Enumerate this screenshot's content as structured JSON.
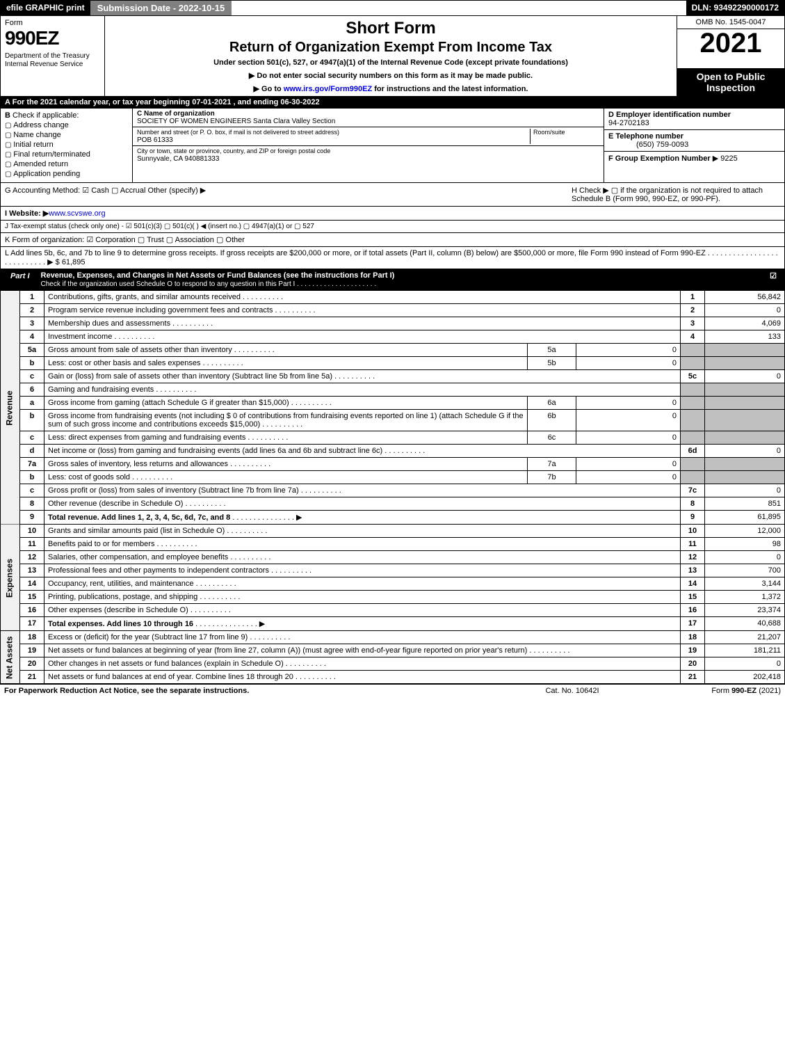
{
  "header": {
    "efile": "efile GRAPHIC print",
    "submission": "Submission Date - 2022-10-15",
    "dln": "DLN: 93492290000172"
  },
  "top": {
    "form_label": "Form",
    "form_number": "990EZ",
    "dept": "Department of the Treasury\nInternal Revenue Service",
    "short_form": "Short Form",
    "return_title": "Return of Organization Exempt From Income Tax",
    "under": "Under section 501(c), 527, or 4947(a)(1) of the Internal Revenue Code (except private foundations)",
    "no_ssn": "▶ Do not enter social security numbers on this form as it may be made public.",
    "goto": "▶ Go to www.irs.gov/Form990EZ for instructions and the latest information.",
    "goto_link": "www.irs.gov/Form990EZ",
    "omb": "OMB No. 1545-0047",
    "year": "2021",
    "open": "Open to Public Inspection"
  },
  "section_a": "For the 2021 calendar year, or tax year beginning 07-01-2021 , and ending 06-30-2022",
  "section_b": {
    "label": "Check if applicable:",
    "items": [
      "Address change",
      "Name change",
      "Initial return",
      "Final return/terminated",
      "Amended return",
      "Application pending"
    ]
  },
  "section_c": {
    "name_lbl": "C Name of organization",
    "name": "SOCIETY OF WOMEN ENGINEERS Santa Clara Valley Section",
    "street_lbl": "Number and street (or P. O. box, if mail is not delivered to street address)",
    "street": "POB 61333",
    "room_lbl": "Room/suite",
    "city_lbl": "City or town, state or province, country, and ZIP or foreign postal code",
    "city": "Sunnyvale, CA  940881333"
  },
  "section_d": {
    "lbl": "D Employer identification number",
    "val": "94-2702183"
  },
  "section_e": {
    "lbl": "E Telephone number",
    "val": "(650) 759-0093"
  },
  "section_f": {
    "lbl": "F Group Exemption Number",
    "val": "▶ 9225"
  },
  "section_g": "G Accounting Method:  ☑ Cash  ▢ Accrual  Other (specify) ▶",
  "section_h": "H  Check ▶  ▢  if the organization is not required to attach Schedule B (Form 990, 990-EZ, or 990-PF).",
  "section_i": {
    "lbl": "I Website: ▶",
    "val": "www.scvswe.org"
  },
  "section_j": "J Tax-exempt status (check only one) - ☑ 501(c)(3) ▢ 501(c)(  ) ◀ (insert no.) ▢ 4947(a)(1) or ▢ 527",
  "section_k": "K Form of organization:  ☑ Corporation  ▢ Trust  ▢ Association  ▢ Other",
  "section_l": "L Add lines 5b, 6c, and 7b to line 9 to determine gross receipts. If gross receipts are $200,000 or more, or if total assets (Part II, column (B) below) are $500,000 or more, file Form 990 instead of Form 990-EZ .  .  .  .  .  .  .  .  .  .  .  .  .  .  .  .  .  .  .  .  .  .  .  .  .  .  .   ▶ $ 61,895",
  "part1": {
    "hdr_lbl": "Part I",
    "hdr_txt": "Revenue, Expenses, and Changes in Net Assets or Fund Balances (see the instructions for Part I)",
    "hdr_sub": "Check if the organization used Schedule O to respond to any question in this Part I .  .  .  .  .  .  .  .  .  .  .  .  .  .  .  .  .  .  .  .  .",
    "side_rev": "Revenue",
    "side_exp": "Expenses",
    "side_net": "Net Assets"
  },
  "lines": [
    {
      "n": "1",
      "t": "Contributions, gifts, grants, and similar amounts received",
      "rn": "1",
      "amt": "56,842"
    },
    {
      "n": "2",
      "t": "Program service revenue including government fees and contracts",
      "rn": "2",
      "amt": "0"
    },
    {
      "n": "3",
      "t": "Membership dues and assessments",
      "rn": "3",
      "amt": "4,069"
    },
    {
      "n": "4",
      "t": "Investment income",
      "rn": "4",
      "amt": "133"
    },
    {
      "n": "5a",
      "t": "Gross amount from sale of assets other than inventory",
      "sub": "5a",
      "sv": "0"
    },
    {
      "n": "b",
      "t": "Less: cost or other basis and sales expenses",
      "sub": "5b",
      "sv": "0"
    },
    {
      "n": "c",
      "t": "Gain or (loss) from sale of assets other than inventory (Subtract line 5b from line 5a)",
      "rn": "5c",
      "amt": "0"
    },
    {
      "n": "6",
      "t": "Gaming and fundraising events"
    },
    {
      "n": "a",
      "t": "Gross income from gaming (attach Schedule G if greater than $15,000)",
      "sub": "6a",
      "sv": "0"
    },
    {
      "n": "b",
      "t": "Gross income from fundraising events (not including $  0               of contributions from fundraising events reported on line 1) (attach Schedule G if the sum of such gross income and contributions exceeds $15,000)",
      "sub": "6b",
      "sv": "0"
    },
    {
      "n": "c",
      "t": "Less: direct expenses from gaming and fundraising events",
      "sub": "6c",
      "sv": "0"
    },
    {
      "n": "d",
      "t": "Net income or (loss) from gaming and fundraising events (add lines 6a and 6b and subtract line 6c)",
      "rn": "6d",
      "amt": "0"
    },
    {
      "n": "7a",
      "t": "Gross sales of inventory, less returns and allowances",
      "sub": "7a",
      "sv": "0"
    },
    {
      "n": "b",
      "t": "Less: cost of goods sold",
      "sub": "7b",
      "sv": "0"
    },
    {
      "n": "c",
      "t": "Gross profit or (loss) from sales of inventory (Subtract line 7b from line 7a)",
      "rn": "7c",
      "amt": "0"
    },
    {
      "n": "8",
      "t": "Other revenue (describe in Schedule O)",
      "rn": "8",
      "amt": "851"
    },
    {
      "n": "9",
      "t": "Total revenue. Add lines 1, 2, 3, 4, 5c, 6d, 7c, and 8",
      "rn": "9",
      "amt": "61,895",
      "bold": true,
      "arrow": true
    }
  ],
  "expenses": [
    {
      "n": "10",
      "t": "Grants and similar amounts paid (list in Schedule O)",
      "rn": "10",
      "amt": "12,000"
    },
    {
      "n": "11",
      "t": "Benefits paid to or for members",
      "rn": "11",
      "amt": "98"
    },
    {
      "n": "12",
      "t": "Salaries, other compensation, and employee benefits",
      "rn": "12",
      "amt": "0"
    },
    {
      "n": "13",
      "t": "Professional fees and other payments to independent contractors",
      "rn": "13",
      "amt": "700"
    },
    {
      "n": "14",
      "t": "Occupancy, rent, utilities, and maintenance",
      "rn": "14",
      "amt": "3,144"
    },
    {
      "n": "15",
      "t": "Printing, publications, postage, and shipping",
      "rn": "15",
      "amt": "1,372"
    },
    {
      "n": "16",
      "t": "Other expenses (describe in Schedule O)",
      "rn": "16",
      "amt": "23,374"
    },
    {
      "n": "17",
      "t": "Total expenses. Add lines 10 through 16",
      "rn": "17",
      "amt": "40,688",
      "bold": true,
      "arrow": true
    }
  ],
  "netassets": [
    {
      "n": "18",
      "t": "Excess or (deficit) for the year (Subtract line 17 from line 9)",
      "rn": "18",
      "amt": "21,207"
    },
    {
      "n": "19",
      "t": "Net assets or fund balances at beginning of year (from line 27, column (A)) (must agree with end-of-year figure reported on prior year's return)",
      "rn": "19",
      "amt": "181,211"
    },
    {
      "n": "20",
      "t": "Other changes in net assets or fund balances (explain in Schedule O)",
      "rn": "20",
      "amt": "0"
    },
    {
      "n": "21",
      "t": "Net assets or fund balances at end of year. Combine lines 18 through 20",
      "rn": "21",
      "amt": "202,418"
    }
  ],
  "footer": {
    "l": "For Paperwork Reduction Act Notice, see the separate instructions.",
    "m": "Cat. No. 10642I",
    "r": "Form 990-EZ (2021)"
  },
  "colors": {
    "black": "#000000",
    "grey_hdr": "#808080",
    "grey_cell": "#c0c0c0",
    "link": "#0000ee"
  }
}
